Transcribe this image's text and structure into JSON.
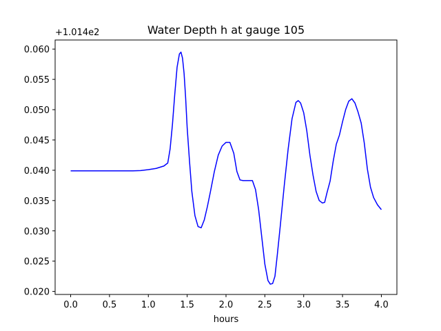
{
  "chart_data": {
    "type": "line",
    "title": "Water Depth h at gauge 105",
    "xlabel": "hours",
    "ylabel": "",
    "y_offset_text": "+1.014e2",
    "xlim": [
      -0.2,
      4.2
    ],
    "ylim": [
      0.0195,
      0.0615
    ],
    "x_ticks": [
      0.0,
      0.5,
      1.0,
      1.5,
      2.0,
      2.5,
      3.0,
      3.5,
      4.0
    ],
    "x_tick_labels": [
      "0.0",
      "0.5",
      "1.0",
      "1.5",
      "2.0",
      "2.5",
      "3.0",
      "3.5",
      "4.0"
    ],
    "y_ticks": [
      0.02,
      0.025,
      0.03,
      0.035,
      0.04,
      0.045,
      0.05,
      0.055,
      0.06
    ],
    "y_tick_labels": [
      "0.020",
      "0.025",
      "0.030",
      "0.035",
      "0.040",
      "0.045",
      "0.050",
      "0.055",
      "0.060"
    ],
    "grid": false,
    "series": [
      {
        "color": "#0000ff",
        "x": [
          0.0,
          0.2,
          0.4,
          0.6,
          0.8,
          0.9,
          1.0,
          1.1,
          1.15,
          1.2,
          1.25,
          1.28,
          1.31,
          1.34,
          1.37,
          1.4,
          1.42,
          1.44,
          1.46,
          1.48,
          1.5,
          1.53,
          1.56,
          1.6,
          1.64,
          1.68,
          1.72,
          1.76,
          1.8,
          1.85,
          1.9,
          1.95,
          2.0,
          2.05,
          2.1,
          2.14,
          2.18,
          2.22,
          2.26,
          2.3,
          2.34,
          2.38,
          2.42,
          2.46,
          2.5,
          2.54,
          2.57,
          2.6,
          2.63,
          2.66,
          2.7,
          2.75,
          2.8,
          2.85,
          2.9,
          2.93,
          2.96,
          3.0,
          3.04,
          3.08,
          3.12,
          3.16,
          3.2,
          3.24,
          3.27,
          3.3,
          3.34,
          3.38,
          3.42,
          3.46,
          3.5,
          3.54,
          3.58,
          3.62,
          3.66,
          3.7,
          3.74,
          3.78,
          3.82,
          3.86,
          3.9,
          3.95,
          4.0
        ],
        "y": [
          0.0399,
          0.0399,
          0.0399,
          0.0399,
          0.0399,
          0.03995,
          0.0401,
          0.0403,
          0.0405,
          0.0407,
          0.0412,
          0.0435,
          0.0475,
          0.0525,
          0.057,
          0.0592,
          0.0595,
          0.0585,
          0.056,
          0.052,
          0.047,
          0.0415,
          0.0365,
          0.0325,
          0.0307,
          0.0305,
          0.0318,
          0.034,
          0.0365,
          0.0398,
          0.0425,
          0.044,
          0.0446,
          0.0446,
          0.0428,
          0.0398,
          0.0384,
          0.0383,
          0.0383,
          0.0383,
          0.0383,
          0.0368,
          0.0335,
          0.029,
          0.0245,
          0.0218,
          0.0212,
          0.0213,
          0.0225,
          0.026,
          0.031,
          0.0375,
          0.0435,
          0.0485,
          0.0512,
          0.0515,
          0.0511,
          0.0495,
          0.0465,
          0.0425,
          0.0392,
          0.0365,
          0.035,
          0.0346,
          0.0347,
          0.0363,
          0.0382,
          0.0415,
          0.0443,
          0.0458,
          0.048,
          0.05,
          0.0514,
          0.0518,
          0.0511,
          0.0496,
          0.0478,
          0.0445,
          0.0402,
          0.0372,
          0.0355,
          0.0343,
          0.0335
        ]
      }
    ]
  }
}
